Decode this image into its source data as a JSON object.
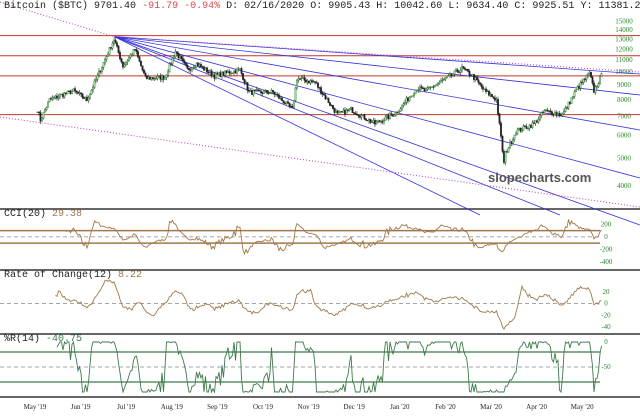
{
  "header": {
    "name": "Bitcoin ($BTC)",
    "last": "9701.40",
    "change": "-91.79",
    "change_pct": "-0.94%",
    "date_label": "D:",
    "date": "02/16/2020",
    "open_label": "O:",
    "open": "9905.43",
    "high_label": "H:",
    "high": "10042.60",
    "low_label": "L:",
    "low": "9634.40",
    "close_label": "C:",
    "close": "9925.51",
    "y_label": "Y:",
    "y": "11381.23"
  },
  "watermark": "slopecharts.com",
  "colors": {
    "up": "#2e8b2e",
    "down": "#222222",
    "hline": "#c0392b",
    "fan": "#3333dd",
    "dotted": "#b040c0",
    "cci": "#a0784a",
    "roc": "#a0784a",
    "wr": "#3e7a4a",
    "axis": "#2a8a2a"
  },
  "chart_data": [
    {
      "type": "candlestick",
      "scale": "log",
      "ylim": [
        3500,
        16000
      ],
      "y_ticks": [
        "15000",
        "14000",
        "13000",
        "12000",
        "11000",
        "10000",
        "9000",
        "8000",
        "7000",
        "6000",
        "5000",
        "4000"
      ],
      "x_ticks": [
        "May '19",
        "Jun '19",
        "Jul '19",
        "Aug '19",
        "Sep '19",
        "Oct '19",
        "Nov '19",
        "Dec '19",
        "Jan '20",
        "Feb '20",
        "Mar '20",
        "Apr '20",
        "May '20"
      ],
      "horizontal_lines": [
        13400,
        11400,
        9700,
        7100
      ],
      "close_path": [
        [
          "2019-05-06",
          7400
        ],
        [
          "2019-05-08",
          6800
        ],
        [
          "2019-05-14",
          8000
        ],
        [
          "2019-05-30",
          8600
        ],
        [
          "2019-06-08",
          8000
        ],
        [
          "2019-06-26",
          13000
        ],
        [
          "2019-07-02",
          10500
        ],
        [
          "2019-07-10",
          12000
        ],
        [
          "2019-07-17",
          9500
        ],
        [
          "2019-07-30",
          9600
        ],
        [
          "2019-08-06",
          11800
        ],
        [
          "2019-08-14",
          10200
        ],
        [
          "2019-08-20",
          10700
        ],
        [
          "2019-09-01",
          9700
        ],
        [
          "2019-09-18",
          10200
        ],
        [
          "2019-09-24",
          8500
        ],
        [
          "2019-10-10",
          8500
        ],
        [
          "2019-10-23",
          7400
        ],
        [
          "2019-10-26",
          9500
        ],
        [
          "2019-11-07",
          9200
        ],
        [
          "2019-11-22",
          7100
        ],
        [
          "2019-12-01",
          7400
        ],
        [
          "2019-12-17",
          6600
        ],
        [
          "2019-12-31",
          7200
        ],
        [
          "2020-01-14",
          8800
        ],
        [
          "2020-01-20",
          8600
        ],
        [
          "2020-02-01",
          9400
        ],
        [
          "2020-02-13",
          10300
        ],
        [
          "2020-02-20",
          9700
        ],
        [
          "2020-02-28",
          8600
        ],
        [
          "2020-03-07",
          8000
        ],
        [
          "2020-03-12",
          4800
        ],
        [
          "2020-03-13",
          5200
        ],
        [
          "2020-03-20",
          6200
        ],
        [
          "2020-04-01",
          6600
        ],
        [
          "2020-04-08",
          7300
        ],
        [
          "2020-04-20",
          7100
        ],
        [
          "2020-04-30",
          8800
        ],
        [
          "2020-05-08",
          9900
        ],
        [
          "2020-05-11",
          8600
        ],
        [
          "2020-05-16",
          9700
        ]
      ]
    },
    {
      "type": "line",
      "name": "CCI(20)",
      "label": "CCI(20)",
      "value": "29.38",
      "y_ticks": [
        "200",
        "0",
        "-200",
        "-400"
      ]
    },
    {
      "type": "line",
      "name": "Rate of Change(12)",
      "label": "Rate of Change(12)",
      "value": "8.22",
      "y_ticks": [
        "20",
        "0",
        "-20",
        "-40"
      ]
    },
    {
      "type": "line",
      "name": "%R(14)",
      "label": "%R(14)",
      "value": "-40.75",
      "y_ticks": [
        "0",
        "-50"
      ]
    }
  ]
}
